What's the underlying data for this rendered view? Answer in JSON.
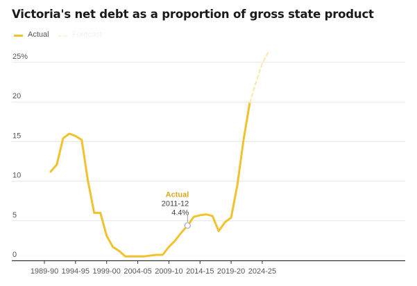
{
  "title": "Victoria's net debt as a proportion of gross state product",
  "legend": {
    "actual_label": "Actual",
    "forecast_label": "Forecast"
  },
  "colors": {
    "actual": "#f2c12e",
    "forecast": "#fbe7a8",
    "annotation_label": "#d9a81f",
    "axis": "#555555",
    "grid": "#e6e6e6"
  },
  "chart_data": {
    "type": "line",
    "title": "Victoria's net debt as a proportion of gross state product",
    "xlabel": "",
    "ylabel": "",
    "ylim": [
      0,
      27
    ],
    "y_ticks": [
      0,
      5,
      10,
      15,
      20,
      25
    ],
    "y_tick_labels": [
      "0",
      "5",
      "10",
      "15",
      "20",
      "25%"
    ],
    "x_tick_labels": [
      "1989-90",
      "1994-95",
      "1999-00",
      "2004-05",
      "2009-10",
      "2014-15",
      "2019-20",
      "2024-25"
    ],
    "grid": true,
    "legend_position": "top-left",
    "series": [
      {
        "name": "Actual",
        "style": "solid",
        "x": [
          "1990-91",
          "1991-92",
          "1992-93",
          "1993-94",
          "1994-95",
          "1995-96",
          "1996-97",
          "1997-98",
          "1998-99",
          "1999-00",
          "2000-01",
          "2001-02",
          "2002-03",
          "2003-04",
          "2004-05",
          "2005-06",
          "2006-07",
          "2007-08",
          "2008-09",
          "2009-10",
          "2010-11",
          "2011-12",
          "2012-13",
          "2013-14",
          "2014-15",
          "2015-16",
          "2016-17",
          "2017-18",
          "2018-19",
          "2019-20",
          "2020-21",
          "2021-22",
          "2022-23"
        ],
        "values": [
          11.2,
          12.1,
          15.4,
          16.0,
          15.7,
          15.2,
          10.0,
          6.0,
          6.0,
          3.1,
          1.7,
          1.2,
          0.5,
          0.5,
          0.5,
          0.5,
          0.6,
          0.7,
          0.7,
          1.7,
          2.5,
          3.5,
          4.4,
          5.5,
          5.7,
          5.8,
          5.6,
          3.7,
          4.8,
          5.4,
          9.5,
          15.2,
          19.9
        ]
      },
      {
        "name": "Forecast",
        "style": "dashed",
        "x": [
          "2022-23",
          "2023-24",
          "2024-25",
          "2025-26"
        ],
        "values": [
          19.9,
          22.5,
          24.9,
          26.3
        ]
      }
    ],
    "annotations": [
      {
        "label": "Actual",
        "x": "2011-12",
        "value_text": "4.4%",
        "value": 4.4,
        "plot_x": "2012-13"
      }
    ]
  }
}
